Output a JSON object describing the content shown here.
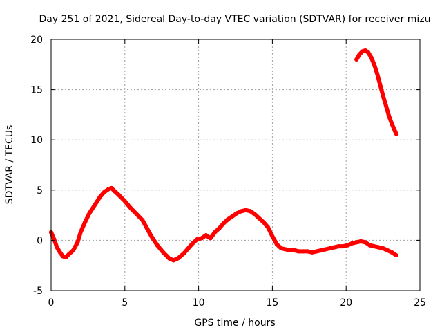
{
  "chart_data": {
    "type": "line",
    "title": "Day 251 of 2021, Sidereal Day-to-day VTEC variation (SDTVAR) for receiver mizu",
    "xlabel": "GPS time / hours",
    "ylabel": "SDTVAR / TECUs",
    "xlim": [
      0,
      25
    ],
    "ylim": [
      -5,
      20
    ],
    "xticks": [
      0,
      5,
      10,
      15,
      20,
      25
    ],
    "yticks": [
      -5,
      0,
      5,
      10,
      15,
      20
    ],
    "grid": true,
    "series": [
      {
        "name": "SDTVAR",
        "color": "#ff0000",
        "segments": [
          {
            "x": [
              0.0,
              0.2,
              0.4,
              0.6,
              0.8,
              1.0,
              1.2,
              1.5,
              1.8,
              2.0,
              2.3,
              2.6,
              3.0,
              3.3,
              3.6,
              3.9,
              4.1,
              4.3,
              4.6,
              5.0,
              5.4,
              5.8,
              6.2,
              6.5,
              6.8,
              7.2,
              7.6,
              8.0,
              8.3,
              8.6,
              9.0,
              9.3,
              9.6,
              9.9,
              10.2,
              10.5,
              10.8,
              11.1,
              11.4,
              11.7,
              12.0,
              12.3,
              12.6,
              12.9,
              13.2,
              13.5,
              13.8,
              14.1,
              14.4,
              14.7,
              15.0,
              15.3,
              15.6,
              15.9,
              16.2,
              16.5,
              16.8,
              17.1,
              17.4,
              17.7,
              18.0,
              18.3,
              18.6,
              18.9,
              19.2,
              19.5,
              19.8,
              20.1,
              20.4,
              20.7,
              21.0,
              21.3,
              21.6,
              21.9,
              22.2,
              22.5,
              22.8,
              23.1,
              23.4
            ],
            "y": [
              0.8,
              0.1,
              -0.7,
              -1.2,
              -1.6,
              -1.7,
              -1.4,
              -1.0,
              -0.2,
              0.8,
              1.8,
              2.7,
              3.6,
              4.3,
              4.8,
              5.1,
              5.2,
              4.9,
              4.5,
              3.9,
              3.2,
              2.6,
              2.0,
              1.2,
              0.4,
              -0.5,
              -1.2,
              -1.8,
              -2.0,
              -1.8,
              -1.3,
              -0.8,
              -0.3,
              0.1,
              0.2,
              0.5,
              0.2,
              0.8,
              1.2,
              1.7,
              2.1,
              2.4,
              2.7,
              2.9,
              3.0,
              2.9,
              2.6,
              2.2,
              1.8,
              1.3,
              0.4,
              -0.4,
              -0.8,
              -0.9,
              -1.0,
              -1.0,
              -1.1,
              -1.1,
              -1.1,
              -1.2,
              -1.1,
              -1.0,
              -0.9,
              -0.8,
              -0.7,
              -0.6,
              -0.6,
              -0.5,
              -0.3,
              -0.2,
              -0.1,
              -0.2,
              -0.5,
              -0.6,
              -0.7,
              -0.8,
              -1.0,
              -1.2,
              -1.5
            ]
          },
          {
            "x": [
              20.7,
              20.9,
              21.1,
              21.3,
              21.5,
              21.7,
              21.9,
              22.1,
              22.3,
              22.5,
              22.7,
              22.9,
              23.1,
              23.3,
              23.4
            ],
            "y": [
              18.0,
              18.5,
              18.8,
              18.9,
              18.7,
              18.2,
              17.5,
              16.6,
              15.5,
              14.4,
              13.4,
              12.4,
              11.6,
              10.9,
              10.6
            ]
          }
        ]
      }
    ]
  }
}
